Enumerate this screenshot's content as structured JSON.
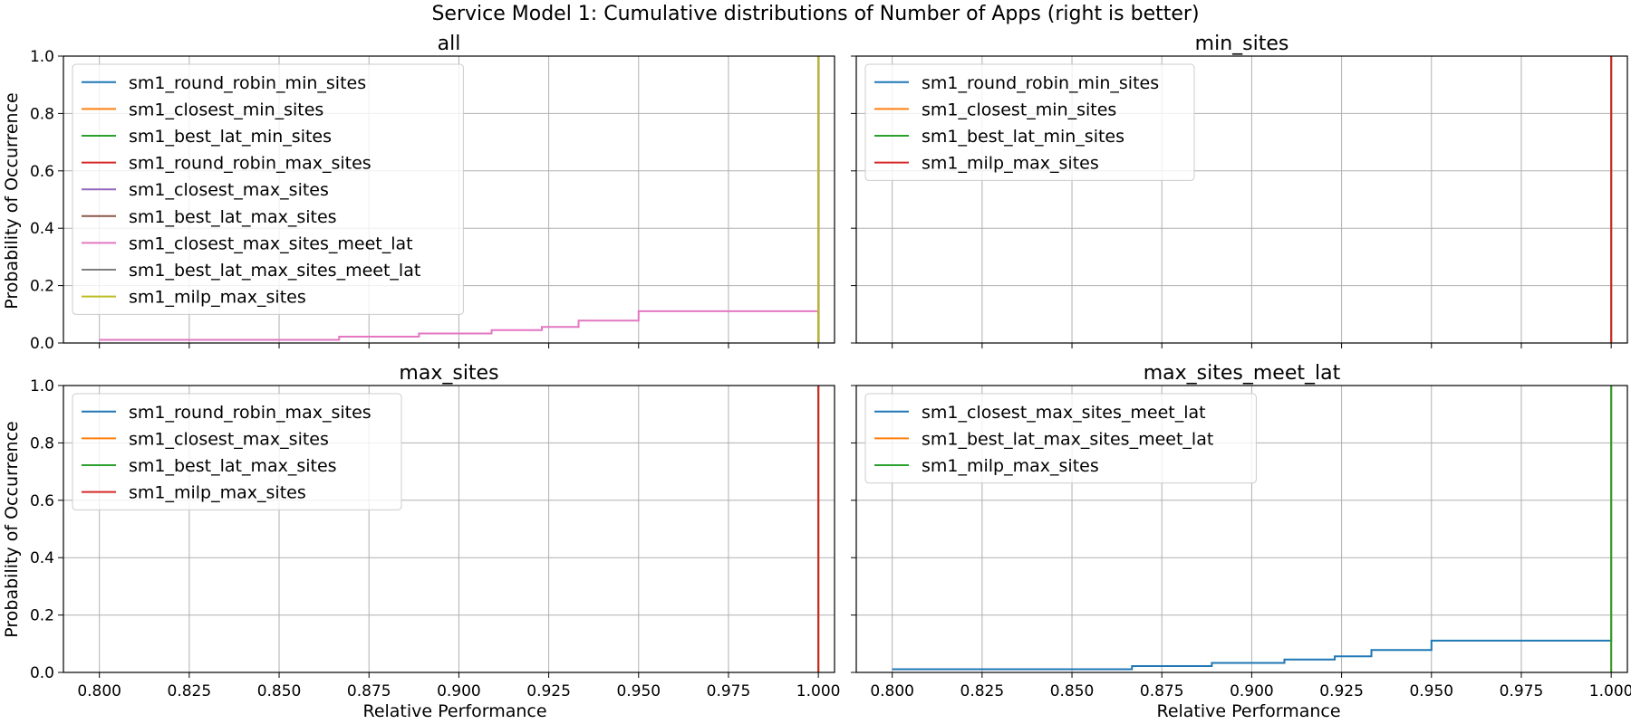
{
  "figure": {
    "title": "Service Model 1: Cumulative distributions of Number of Apps (right is better)",
    "xlabel": "Relative Performance",
    "ylabel": "Probability of Occurrence"
  },
  "colors": {
    "C0": "#1f77b4",
    "C1": "#ff7f0e",
    "C2": "#2ca02c",
    "C3": "#d62728",
    "C4": "#9467bd",
    "C5": "#8c564b",
    "C6": "#e377c2",
    "C7": "#7f7f7f",
    "C8": "#bcbd22"
  },
  "chart_data": [
    {
      "type": "line",
      "title": "all",
      "xlim": [
        0.79,
        1.0045
      ],
      "ylim": [
        0.0,
        1.0
      ],
      "xticks": [
        "0.800",
        "0.825",
        "0.850",
        "0.875",
        "0.900",
        "0.925",
        "0.950",
        "0.975",
        "1.000"
      ],
      "yticks": [
        "0.0",
        "0.2",
        "0.4",
        "0.6",
        "0.8",
        "1.0"
      ],
      "grid": true,
      "legend_loc": "upper-left",
      "series": [
        {
          "name": "sm1_round_robin_min_sites",
          "color": "C0",
          "x": [
            1.0,
            1.0
          ],
          "y": [
            0.0,
            1.0
          ]
        },
        {
          "name": "sm1_closest_min_sites",
          "color": "C1",
          "x": [
            1.0,
            1.0
          ],
          "y": [
            0.0,
            1.0
          ]
        },
        {
          "name": "sm1_best_lat_min_sites",
          "color": "C2",
          "x": [
            1.0,
            1.0
          ],
          "y": [
            0.0,
            1.0
          ]
        },
        {
          "name": "sm1_round_robin_max_sites",
          "color": "C3",
          "x": [
            1.0,
            1.0
          ],
          "y": [
            0.0,
            1.0
          ]
        },
        {
          "name": "sm1_closest_max_sites",
          "color": "C4",
          "x": [
            1.0,
            1.0
          ],
          "y": [
            0.0,
            1.0
          ]
        },
        {
          "name": "sm1_best_lat_max_sites",
          "color": "C5",
          "x": [
            1.0,
            1.0
          ],
          "y": [
            0.0,
            1.0
          ]
        },
        {
          "name": "sm1_closest_max_sites_meet_lat",
          "color": "C6",
          "x": [
            0.8,
            0.8667,
            0.8889,
            0.9091,
            0.9231,
            0.9333,
            0.95,
            1.0,
            1.0
          ],
          "y": [
            0.011,
            0.022,
            0.033,
            0.045,
            0.056,
            0.078,
            0.111,
            0.111,
            1.0
          ]
        },
        {
          "name": "sm1_best_lat_max_sites_meet_lat",
          "color": "C7",
          "x": [
            1.0,
            1.0
          ],
          "y": [
            0.0,
            1.0
          ]
        },
        {
          "name": "sm1_milp_max_sites",
          "color": "C8",
          "x": [
            1.0,
            1.0
          ],
          "y": [
            0.0,
            1.0
          ]
        }
      ]
    },
    {
      "type": "line",
      "title": "min_sites",
      "xlim": [
        0.79,
        1.0045
      ],
      "ylim": [
        0.0,
        1.0
      ],
      "xticks": [
        "0.800",
        "0.825",
        "0.850",
        "0.875",
        "0.900",
        "0.925",
        "0.950",
        "0.975",
        "1.000"
      ],
      "yticks": [
        "0.0",
        "0.2",
        "0.4",
        "0.6",
        "0.8",
        "1.0"
      ],
      "grid": true,
      "legend_loc": "upper-left",
      "series": [
        {
          "name": "sm1_round_robin_min_sites",
          "color": "C0",
          "x": [
            1.0,
            1.0
          ],
          "y": [
            0.0,
            1.0
          ]
        },
        {
          "name": "sm1_closest_min_sites",
          "color": "C1",
          "x": [
            1.0,
            1.0
          ],
          "y": [
            0.0,
            1.0
          ]
        },
        {
          "name": "sm1_best_lat_min_sites",
          "color": "C2",
          "x": [
            1.0,
            1.0
          ],
          "y": [
            0.0,
            1.0
          ]
        },
        {
          "name": "sm1_milp_max_sites",
          "color": "C3",
          "x": [
            1.0,
            1.0
          ],
          "y": [
            0.0,
            1.0
          ]
        }
      ]
    },
    {
      "type": "line",
      "title": "max_sites",
      "xlim": [
        0.79,
        1.0045
      ],
      "ylim": [
        0.0,
        1.0
      ],
      "xticks": [
        "0.800",
        "0.825",
        "0.850",
        "0.875",
        "0.900",
        "0.925",
        "0.950",
        "0.975",
        "1.000"
      ],
      "yticks": [
        "0.0",
        "0.2",
        "0.4",
        "0.6",
        "0.8",
        "1.0"
      ],
      "grid": true,
      "legend_loc": "upper-left",
      "series": [
        {
          "name": "sm1_round_robin_max_sites",
          "color": "C0",
          "x": [
            1.0,
            1.0
          ],
          "y": [
            0.0,
            1.0
          ]
        },
        {
          "name": "sm1_closest_max_sites",
          "color": "C1",
          "x": [
            1.0,
            1.0
          ],
          "y": [
            0.0,
            1.0
          ]
        },
        {
          "name": "sm1_best_lat_max_sites",
          "color": "C2",
          "x": [
            1.0,
            1.0
          ],
          "y": [
            0.0,
            1.0
          ]
        },
        {
          "name": "sm1_milp_max_sites",
          "color": "C3",
          "x": [
            1.0,
            1.0
          ],
          "y": [
            0.0,
            1.0
          ]
        }
      ]
    },
    {
      "type": "line",
      "title": "max_sites_meet_lat",
      "xlim": [
        0.79,
        1.0045
      ],
      "ylim": [
        0.0,
        1.0
      ],
      "xticks": [
        "0.800",
        "0.825",
        "0.850",
        "0.875",
        "0.900",
        "0.925",
        "0.950",
        "0.975",
        "1.000"
      ],
      "yticks": [
        "0.0",
        "0.2",
        "0.4",
        "0.6",
        "0.8",
        "1.0"
      ],
      "grid": true,
      "legend_loc": "upper-left",
      "series": [
        {
          "name": "sm1_closest_max_sites_meet_lat",
          "color": "C0",
          "x": [
            0.8,
            0.8667,
            0.8889,
            0.9091,
            0.9231,
            0.9333,
            0.95,
            1.0,
            1.0
          ],
          "y": [
            0.011,
            0.022,
            0.033,
            0.045,
            0.056,
            0.078,
            0.111,
            0.111,
            1.0
          ]
        },
        {
          "name": "sm1_best_lat_max_sites_meet_lat",
          "color": "C1",
          "x": [
            1.0,
            1.0
          ],
          "y": [
            0.0,
            1.0
          ]
        },
        {
          "name": "sm1_milp_max_sites",
          "color": "C2",
          "x": [
            1.0,
            1.0
          ],
          "y": [
            0.0,
            1.0
          ]
        }
      ]
    }
  ]
}
